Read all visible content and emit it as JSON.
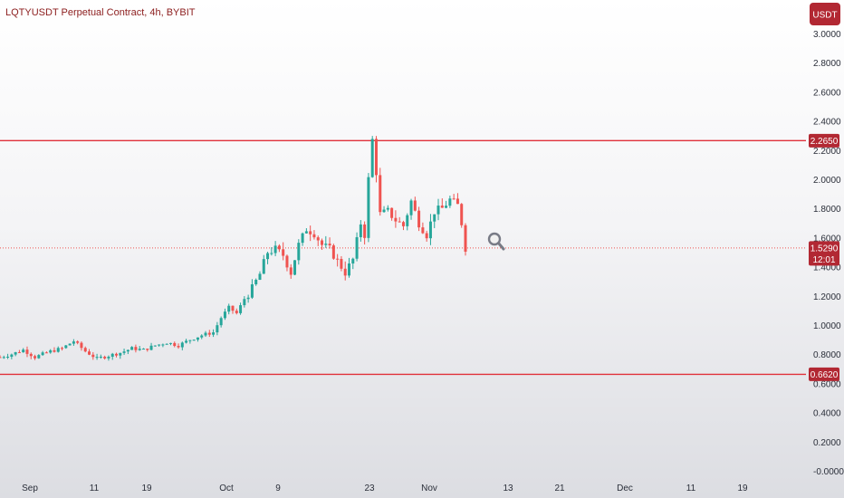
{
  "header": {
    "title": "LQTYUSDT Perpetual Contract, 4h, BYBIT",
    "currency_button": "USDT"
  },
  "colors": {
    "up": "#26a69a",
    "down": "#ef5350",
    "level_line": "#e0313b",
    "badge": "#b22833",
    "badge_text": "#ffffff",
    "axis_text": "#2a2e39",
    "title_text": "#8b1c1c",
    "magnifier": "#787b86"
  },
  "magnifier_icon": "search-icon",
  "chart_data": {
    "type": "candlestick",
    "title": "LQTYUSDT Perpetual Contract, 4h, BYBIT",
    "currency": "USDT",
    "ylim": [
      -0.05,
      3.05
    ],
    "y_ticks": [
      "3.0000",
      "2.8000",
      "2.6000",
      "2.4000",
      "2.2000",
      "2.0000",
      "1.8000",
      "1.6000",
      "1.4000",
      "1.2000",
      "1.0000",
      "0.8000",
      "0.6000",
      "0.4000",
      "0.2000",
      "-0.0000"
    ],
    "x_ticks": [
      "Sep",
      "11",
      "19",
      "Oct",
      "9",
      "23",
      "Nov",
      "13",
      "21",
      "Dec",
      "11",
      "19"
    ],
    "horizontal_levels": [
      {
        "label": "2.2650",
        "value": 2.265
      },
      {
        "label": "0.6620",
        "value": 0.662
      }
    ],
    "last_price": {
      "label": "1.5290",
      "value": 1.529,
      "countdown": "12:01"
    },
    "price_path": [
      [
        0,
        0.78
      ],
      [
        3,
        0.8
      ],
      [
        6,
        0.83
      ],
      [
        9,
        0.78
      ],
      [
        13,
        0.82
      ],
      [
        16,
        0.84
      ],
      [
        19,
        0.89
      ],
      [
        22,
        0.82
      ],
      [
        25,
        0.77
      ],
      [
        28,
        0.79
      ],
      [
        31,
        0.81
      ],
      [
        34,
        0.84
      ],
      [
        37,
        0.83
      ],
      [
        40,
        0.86
      ],
      [
        43,
        0.88
      ],
      [
        46,
        0.86
      ],
      [
        49,
        0.9
      ],
      [
        52,
        0.93
      ],
      [
        55,
        0.95
      ],
      [
        57,
        1.05
      ],
      [
        59,
        1.12
      ],
      [
        61,
        1.08
      ],
      [
        63,
        1.18
      ],
      [
        65,
        1.25
      ],
      [
        67,
        1.35
      ],
      [
        69,
        1.5
      ],
      [
        71,
        1.52
      ],
      [
        73,
        1.48
      ],
      [
        75,
        1.36
      ],
      [
        77,
        1.55
      ],
      [
        79,
        1.66
      ],
      [
        81,
        1.63
      ],
      [
        83,
        1.55
      ],
      [
        85,
        1.52
      ],
      [
        87,
        1.44
      ],
      [
        89,
        1.36
      ],
      [
        91,
        1.45
      ],
      [
        93,
        1.7
      ],
      [
        94,
        1.62
      ],
      [
        95,
        2.0
      ],
      [
        96,
        2.27
      ],
      [
        97,
        2.05
      ],
      [
        98,
        1.76
      ],
      [
        100,
        1.78
      ],
      [
        102,
        1.72
      ],
      [
        104,
        1.68
      ],
      [
        106,
        1.85
      ],
      [
        108,
        1.7
      ],
      [
        110,
        1.62
      ],
      [
        112,
        1.78
      ],
      [
        114,
        1.8
      ],
      [
        116,
        1.86
      ],
      [
        118,
        1.82
      ],
      [
        119,
        1.7
      ],
      [
        120,
        1.53
      ]
    ]
  }
}
